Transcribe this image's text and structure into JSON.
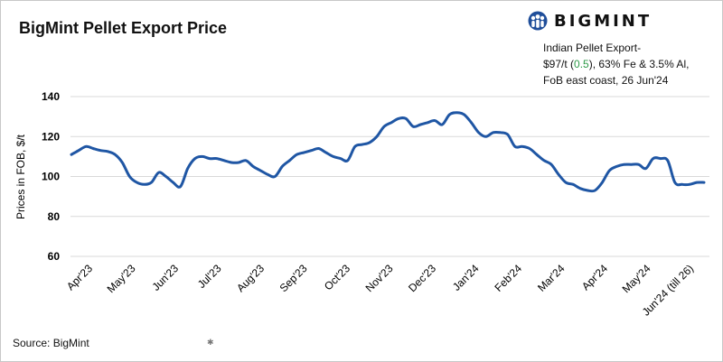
{
  "title": "BigMint Pellet Export Price",
  "brand": {
    "name": "BIGMINT",
    "logo_icon": "bigmint-people-icon",
    "color": "#1f4e9a"
  },
  "note": {
    "line1": "Indian Pellet Export-",
    "line2_prefix": "$97/t (",
    "line2_change": "0.5",
    "line2_suffix": "), 63% Fe & 3.5% Al,",
    "line3": "FoB east coast,  26 Jun'24",
    "change_color": "#2e9a48"
  },
  "source": "Source: BigMint",
  "chart_data": {
    "type": "line",
    "title": "BigMint Pellet Export Price",
    "xlabel": "",
    "ylabel": "Prices in FOB, $/t",
    "ylim": [
      60,
      140
    ],
    "yticks": [
      60,
      80,
      100,
      120,
      140
    ],
    "grid": "horizontal",
    "legend": "none",
    "line_color": "#1f56a4",
    "xtick_labels": [
      "Apr'23",
      "May'23",
      "Jun'23",
      "Jul'23",
      "Aug'23",
      "Sep'23",
      "Oct'23",
      "Nov'23",
      "Dec'23",
      "Jan'24",
      "Feb'24",
      "Mar'24",
      "Apr'24",
      "May'24",
      "Jun'24 (till 26)"
    ],
    "series": [
      {
        "values": [
          111,
          113,
          115,
          114,
          113,
          112.5,
          111,
          107,
          100,
          97,
          96,
          97,
          102,
          100,
          97,
          95,
          104,
          109,
          110,
          109,
          109,
          108,
          107,
          107,
          108,
          105,
          103,
          101,
          100,
          105,
          108,
          111,
          112,
          113,
          114,
          112,
          110,
          109,
          108,
          115,
          116,
          117,
          120,
          125,
          127,
          129,
          129,
          125,
          126,
          127,
          128,
          126,
          131,
          132,
          131,
          127,
          122,
          120,
          122,
          122,
          121,
          115,
          115,
          114,
          111,
          108,
          106,
          101,
          97,
          96,
          94,
          93,
          93,
          97,
          103,
          105,
          106,
          106,
          106,
          104,
          109,
          109,
          108,
          97,
          96,
          96,
          97,
          97
        ]
      }
    ]
  }
}
